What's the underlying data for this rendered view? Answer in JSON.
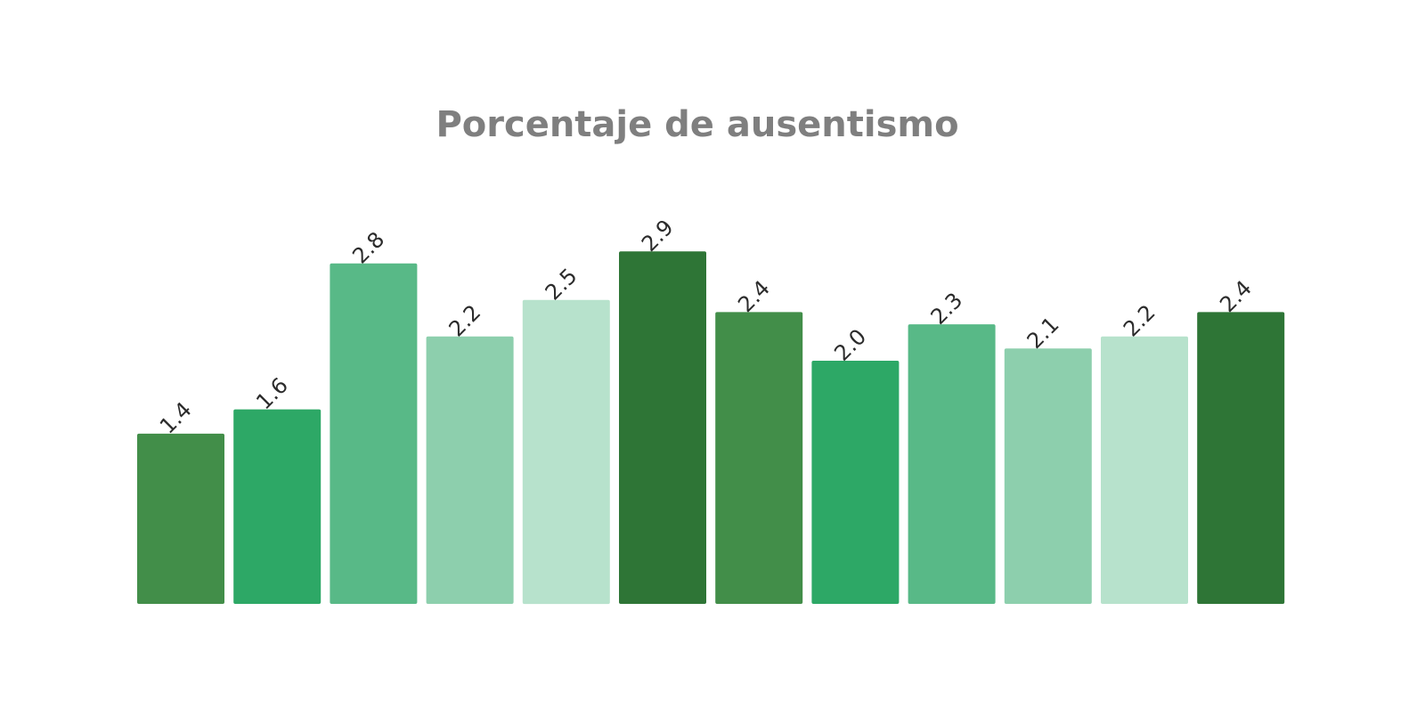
{
  "chart_data": {
    "type": "bar",
    "title": "Porcentaje de ausentismo",
    "values": [
      1.4,
      1.6,
      2.8,
      2.2,
      2.5,
      2.9,
      2.4,
      2.0,
      2.3,
      2.1,
      2.2,
      2.4
    ],
    "labels": [
      "1.4",
      "1.6",
      "2.8",
      "2.2",
      "2.5",
      "2.9",
      "2.4",
      "2.0",
      "2.3",
      "2.1",
      "2.2",
      "2.4"
    ],
    "colors": [
      "#428e49",
      "#2da866",
      "#58b987",
      "#8dcfad",
      "#b7e2cc",
      "#2e7536",
      "#428e49",
      "#2da866",
      "#58b987",
      "#8dcfad",
      "#b7e2cc",
      "#2e7536"
    ],
    "ylim": [
      0,
      3.2
    ],
    "grid": false,
    "legend": "none",
    "xlabel": "",
    "ylabel": ""
  }
}
